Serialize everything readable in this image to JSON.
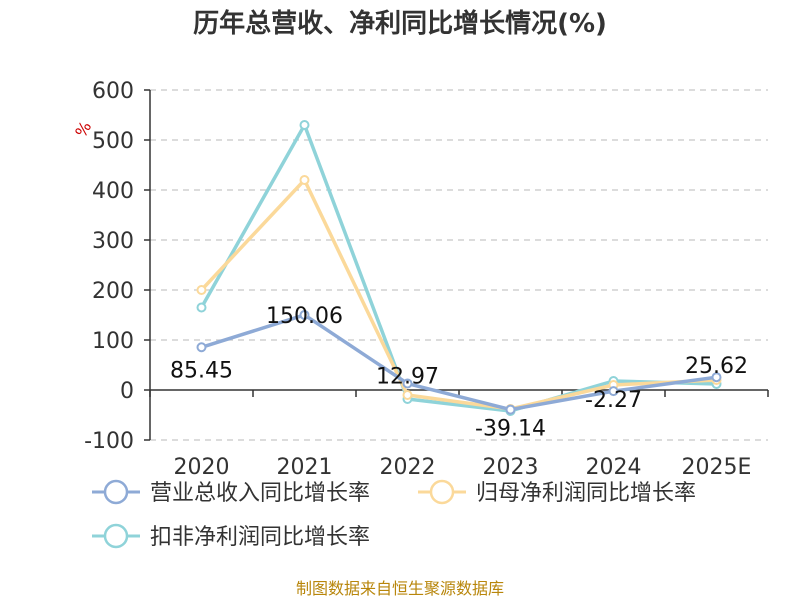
{
  "chart_data": {
    "type": "line",
    "title": "历年总营收、净利同比增长情况(%)",
    "unit_label": "%",
    "categories": [
      "2020",
      "2021",
      "2022",
      "2023",
      "2024",
      "2025E"
    ],
    "ylim": [
      -100,
      600
    ],
    "yticks": [
      600,
      500,
      400,
      300,
      200,
      100,
      0,
      -100
    ],
    "grid": true,
    "legend_position": "bottom",
    "series": [
      {
        "name": "营业总收入同比增长率",
        "color": "#8eaad6",
        "values": [
          85.45,
          150.06,
          12.97,
          -39.14,
          -2.27,
          25.62
        ],
        "labels": [
          "85.45",
          "150.06",
          "12.97",
          "-39.14",
          "-2.27",
          "25.62"
        ]
      },
      {
        "name": "归母净利润同比增长率",
        "color": "#fbd99a",
        "values": [
          200,
          420,
          -10,
          -38,
          10,
          20
        ]
      },
      {
        "name": "扣非净利润同比增长率",
        "color": "#8fd3d9",
        "values": [
          165,
          530,
          -18,
          -42,
          18,
          12
        ]
      }
    ]
  },
  "footer": {
    "source": "制图数据来自恒生聚源数据库"
  }
}
